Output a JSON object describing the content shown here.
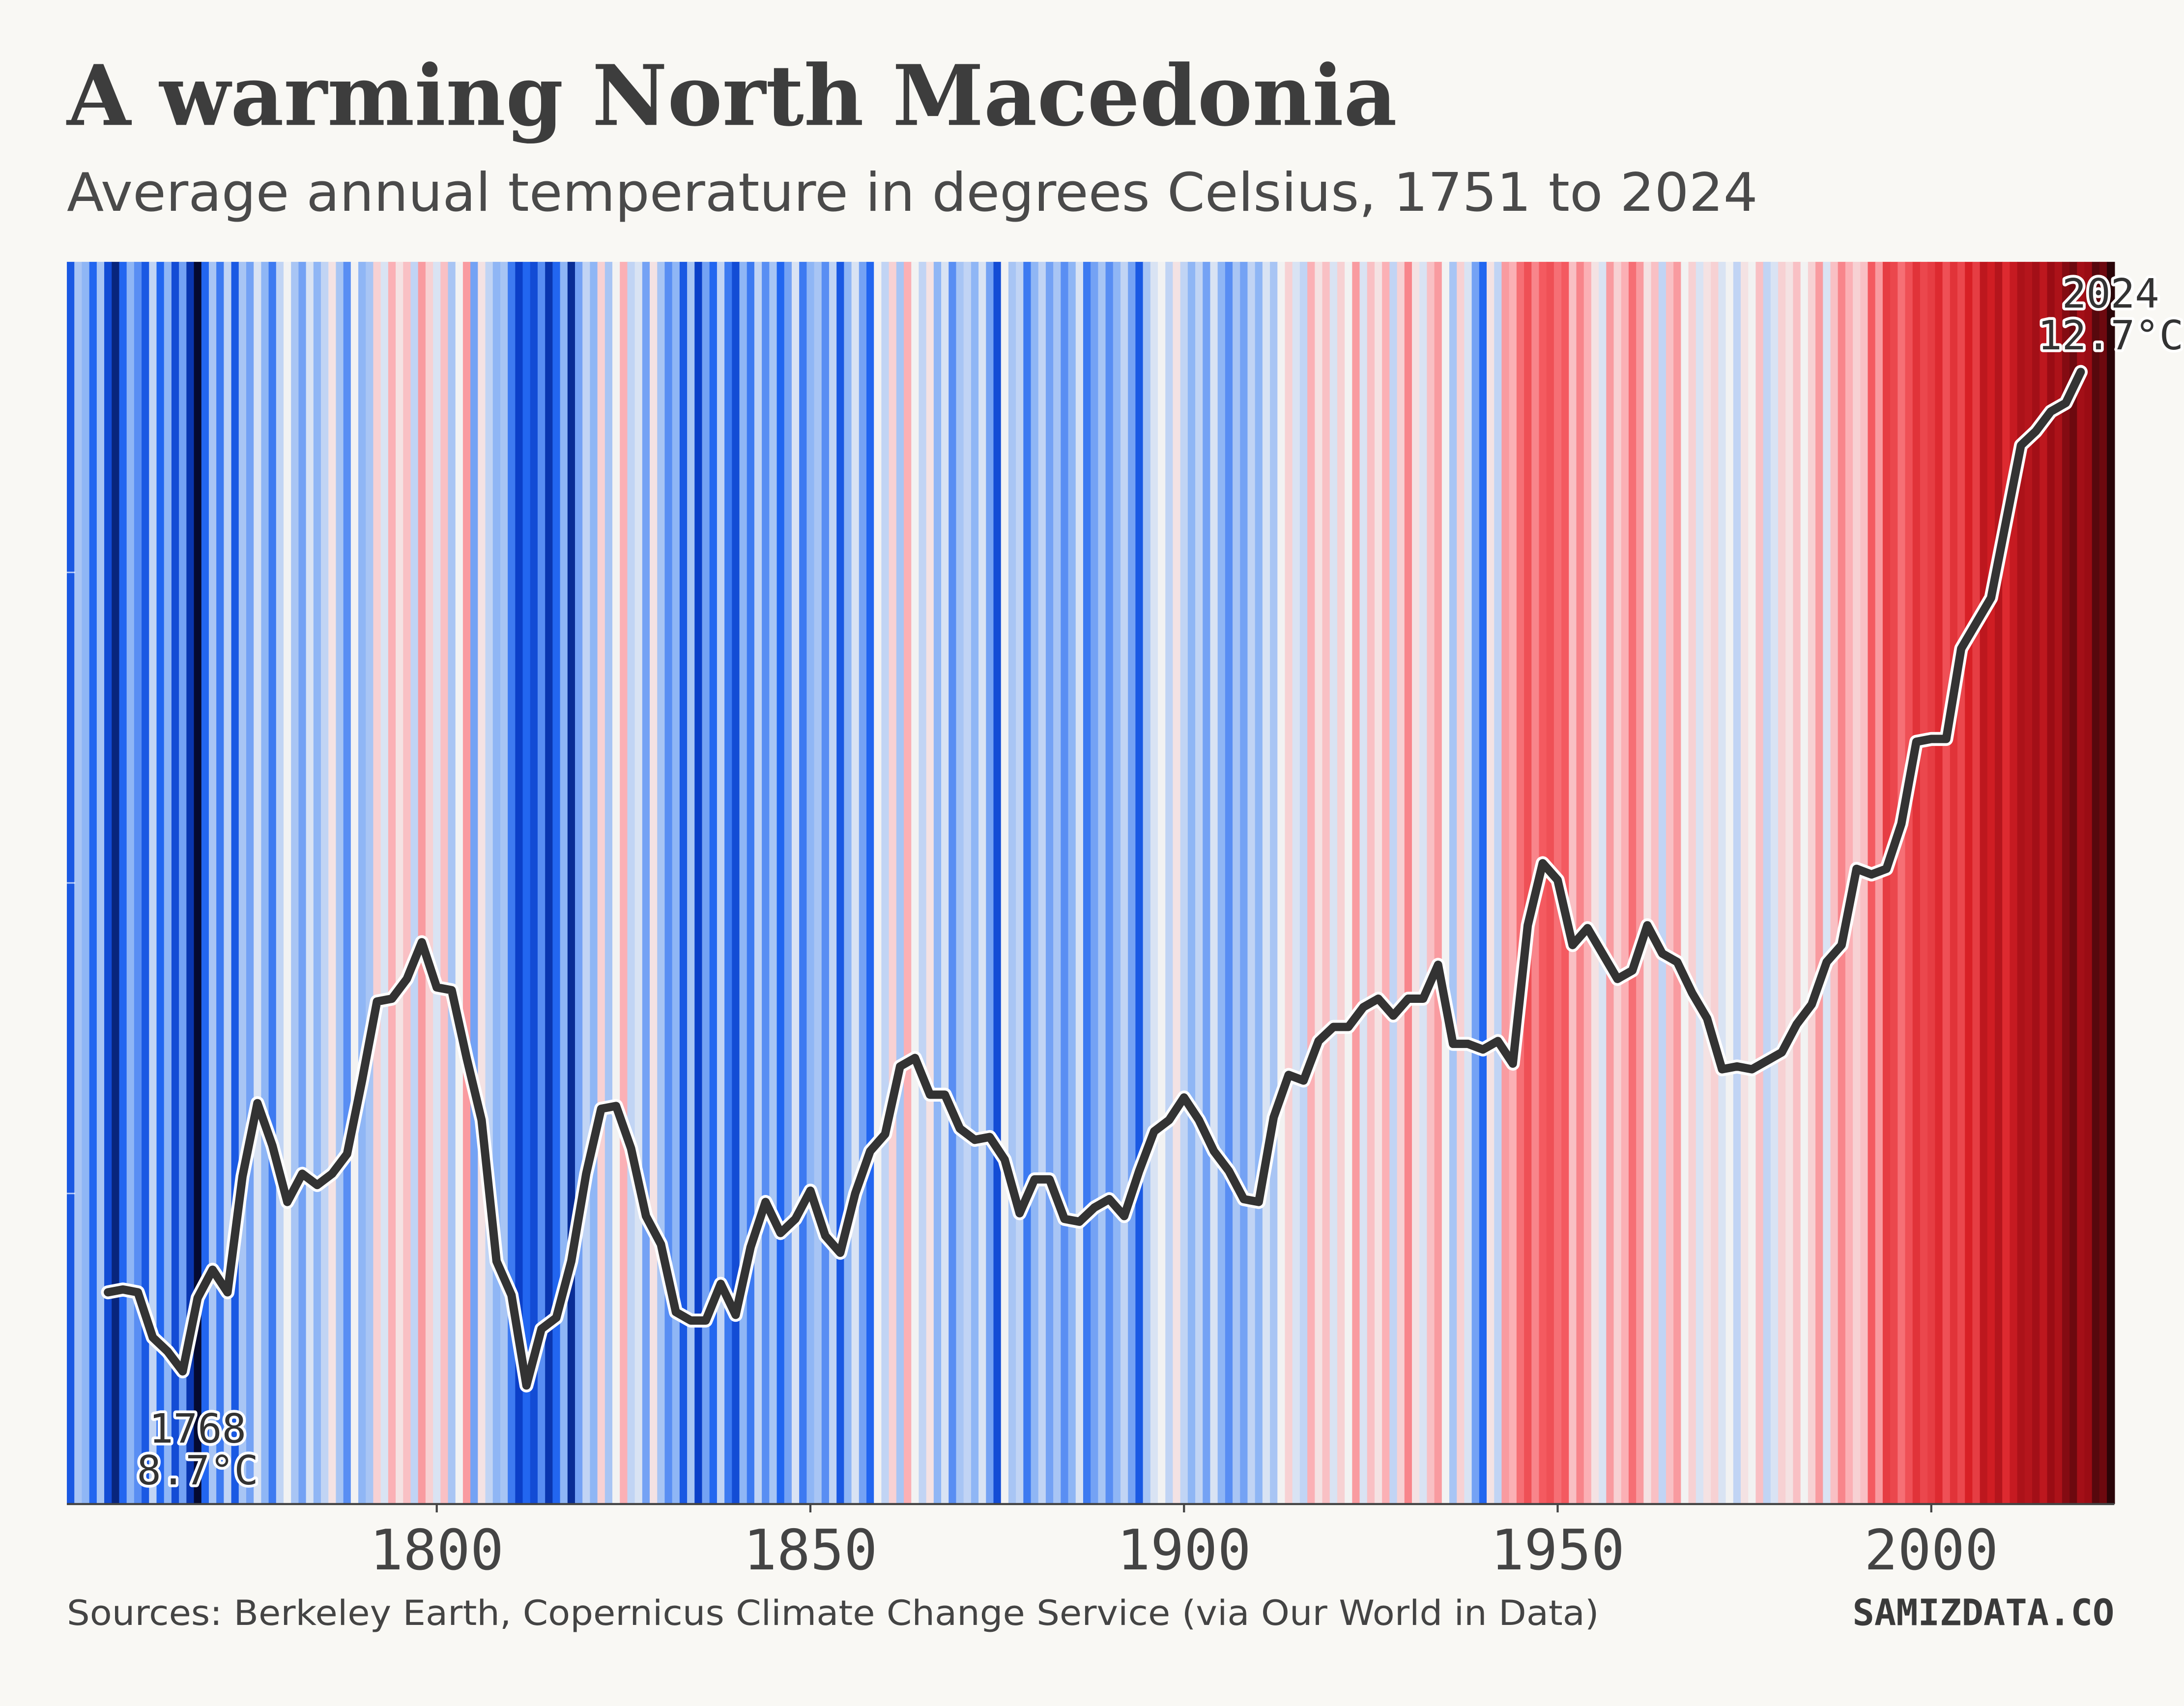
{
  "chart_data": {
    "type": "stripes",
    "title": "A warming North Macedonia",
    "subtitle": "Average annual temperature in degrees Celsius, 1751 to 2024",
    "source": "Sources: Berkeley Earth, Copernicus Climate Change Service (via Our World in Data)",
    "brand": "SAMIZDATA.CO",
    "x": [
      1751,
      1752,
      1753,
      1754,
      1755,
      1756,
      1757,
      1758,
      1759,
      1760,
      1761,
      1762,
      1763,
      1764,
      1765,
      1766,
      1767,
      1768,
      1769,
      1770,
      1771,
      1772,
      1773,
      1774,
      1775,
      1776,
      1777,
      1778,
      1779,
      1780,
      1781,
      1782,
      1783,
      1784,
      1785,
      1786,
      1787,
      1788,
      1789,
      1790,
      1791,
      1792,
      1793,
      1794,
      1795,
      1796,
      1797,
      1798,
      1799,
      1800,
      1801,
      1802,
      1803,
      1804,
      1805,
      1806,
      1807,
      1808,
      1809,
      1810,
      1811,
      1812,
      1813,
      1814,
      1815,
      1816,
      1817,
      1818,
      1819,
      1820,
      1821,
      1822,
      1823,
      1824,
      1825,
      1826,
      1827,
      1828,
      1829,
      1830,
      1831,
      1832,
      1833,
      1834,
      1835,
      1836,
      1837,
      1838,
      1839,
      1840,
      1841,
      1842,
      1843,
      1844,
      1845,
      1846,
      1847,
      1848,
      1849,
      1850,
      1851,
      1852,
      1853,
      1854,
      1855,
      1856,
      1857,
      1858,
      1859,
      1860,
      1861,
      1862,
      1863,
      1864,
      1865,
      1866,
      1867,
      1868,
      1869,
      1870,
      1871,
      1872,
      1873,
      1874,
      1875,
      1876,
      1877,
      1878,
      1879,
      1880,
      1881,
      1882,
      1883,
      1884,
      1885,
      1886,
      1887,
      1888,
      1889,
      1890,
      1891,
      1892,
      1893,
      1894,
      1895,
      1896,
      1897,
      1898,
      1899,
      1900,
      1901,
      1902,
      1903,
      1904,
      1905,
      1906,
      1907,
      1908,
      1909,
      1910,
      1911,
      1912,
      1913,
      1914,
      1915,
      1916,
      1917,
      1918,
      1919,
      1920,
      1921,
      1922,
      1923,
      1924,
      1925,
      1926,
      1927,
      1928,
      1929,
      1930,
      1931,
      1932,
      1933,
      1934,
      1935,
      1936,
      1937,
      1938,
      1939,
      1940,
      1941,
      1942,
      1943,
      1944,
      1945,
      1946,
      1947,
      1948,
      1949,
      1950,
      1951,
      1952,
      1953,
      1954,
      1955,
      1956,
      1957,
      1958,
      1959,
      1960,
      1961,
      1962,
      1963,
      1964,
      1965,
      1966,
      1967,
      1968,
      1969,
      1970,
      1971,
      1972,
      1973,
      1974,
      1975,
      1976,
      1977,
      1978,
      1979,
      1980,
      1981,
      1982,
      1983,
      1984,
      1985,
      1986,
      1987,
      1988,
      1989,
      1990,
      1991,
      1992,
      1993,
      1994,
      1995,
      1996,
      1997,
      1998,
      1999,
      2000,
      2001,
      2002,
      2003,
      2004,
      2005,
      2006,
      2007,
      2008,
      2009,
      2010,
      2011,
      2012,
      2013,
      2014,
      2015,
      2016,
      2017,
      2018,
      2019,
      2020,
      2021,
      2022,
      2023,
      2024
    ],
    "values": [
      9.2,
      9.8,
      9.7,
      9.3,
      9.8,
      9.1,
      8.85,
      9.3,
      9.7,
      9.5,
      9.2,
      9.9,
      9.3,
      9.7,
      9.1,
      9.6,
      8.95,
      8.7,
      9.3,
      9.8,
      9.4,
      9.9,
      9.2,
      9.8,
      9.6,
      10.0,
      9.7,
      9.4,
      9.9,
      10.1,
      9.8,
      9.6,
      10.0,
      9.7,
      9.9,
      10.2,
      9.8,
      9.5,
      10.1,
      9.7,
      9.8,
      10.3,
      10.0,
      10.5,
      10.2,
      10.4,
      9.9,
      10.6,
      10.3,
      10.0,
      10.4,
      9.8,
      10.1,
      10.6,
      9.6,
      10.2,
      9.9,
      9.7,
      9.8,
      9.4,
      9.0,
      9.3,
      9.1,
      9.5,
      8.95,
      9.3,
      9.7,
      8.9,
      9.6,
      9.9,
      9.7,
      10.3,
      9.8,
      10.1,
      10.5,
      9.9,
      10.0,
      9.6,
      10.2,
      9.8,
      9.5,
      9.7,
      9.2,
      9.8,
      9.0,
      9.6,
      9.3,
      9.9,
      9.4,
      9.1,
      9.7,
      9.4,
      9.9,
      9.5,
      9.8,
      9.3,
      9.6,
      10.0,
      9.4,
      9.7,
      9.8,
      9.5,
      9.9,
      9.2,
      9.7,
      10.0,
      9.6,
      9.3,
      10.1,
      9.9,
      10.3,
      9.8,
      10.5,
      10.1,
      9.9,
      10.2,
      9.7,
      10.0,
      9.5,
      9.8,
      9.9,
      9.7,
      10.0,
      9.6,
      9.1,
      10.1,
      9.8,
      9.9,
      9.4,
      9.7,
      9.9,
      9.6,
      9.8,
      9.5,
      9.7,
      10.0,
      9.4,
      9.6,
      9.8,
      9.5,
      9.7,
      9.9,
      9.6,
      9.2,
      9.8,
      10.0,
      10.1,
      9.9,
      10.2,
      9.9,
      9.7,
      9.9,
      9.6,
      10.0,
      9.7,
      9.5,
      9.8,
      9.6,
      9.9,
      9.7,
      10.0,
      9.8,
      10.1,
      10.3,
      10.0,
      9.9,
      10.5,
      10.2,
      10.4,
      10.0,
      10.3,
      10.1,
      10.6,
      10.0,
      10.4,
      10.2,
      10.5,
      9.9,
      10.3,
      10.7,
      10.2,
      10.0,
      10.4,
      10.6,
      10.1,
      9.8,
      10.3,
      10.0,
      9.6,
      9.3,
      10.2,
      9.9,
      10.6,
      10.5,
      10.8,
      11.0,
      10.7,
      10.9,
      11.0,
      10.8,
      10.9,
      10.4,
      10.7,
      10.5,
      10.2,
      10.0,
      10.6,
      10.3,
      10.5,
      10.8,
      10.6,
      10.2,
      10.4,
      9.9,
      10.4,
      10.6,
      10.1,
      10.3,
      10.0,
      10.2,
      10.3,
      10.0,
      10.1,
      9.9,
      10.2,
      10.1,
      10.4,
      9.9,
      10.0,
      10.3,
      10.2,
      10.4,
      10.1,
      10.3,
      10.6,
      10.0,
      10.4,
      10.7,
      10.5,
      10.3,
      10.4,
      10.9,
      10.6,
      11.2,
      11.1,
      10.8,
      11.0,
      11.3,
      11.1,
      11.2,
      11.4,
      11.0,
      11.3,
      11.1,
      11.5,
      11.2,
      11.8,
      11.6,
      11.9,
      11.4,
      11.7,
      12.0,
      11.9,
      12.1,
      11.8,
      12.2,
      12.0,
      12.3,
      12.4,
      12.1,
      12.2,
      12.5,
      12.4,
      12.7
    ],
    "colormap": [
      {
        "value": 8.7,
        "color": "#050a30"
      },
      {
        "value": 9.0,
        "color": "#0b3fc8"
      },
      {
        "value": 9.3,
        "color": "#2266f0"
      },
      {
        "value": 9.7,
        "color": "#8fb6f5"
      },
      {
        "value": 10.1,
        "color": "#f2f2f2"
      },
      {
        "value": 10.5,
        "color": "#fbb0b5"
      },
      {
        "value": 10.9,
        "color": "#f45a60"
      },
      {
        "value": 11.5,
        "color": "#d82026"
      },
      {
        "value": 12.2,
        "color": "#9a0c14"
      },
      {
        "value": 12.7,
        "color": "#2a0508"
      }
    ],
    "line": {
      "type": "line",
      "color": "#333333",
      "x": [
        1756,
        1758,
        1760,
        1762,
        1764,
        1766,
        1768,
        1770,
        1772,
        1774,
        1776,
        1778,
        1780,
        1782,
        1784,
        1786,
        1788,
        1790,
        1792,
        1794,
        1796,
        1798,
        1800,
        1802,
        1804,
        1806,
        1808,
        1810,
        1812,
        1814,
        1816,
        1818,
        1820,
        1822,
        1824,
        1826,
        1828,
        1830,
        1832,
        1834,
        1836,
        1838,
        1840,
        1842,
        1844,
        1846,
        1848,
        1850,
        1852,
        1854,
        1856,
        1858,
        1860,
        1862,
        1864,
        1866,
        1868,
        1870,
        1872,
        1874,
        1876,
        1878,
        1880,
        1882,
        1884,
        1886,
        1888,
        1890,
        1892,
        1894,
        1896,
        1898,
        1900,
        1902,
        1904,
        1906,
        1908,
        1910,
        1912,
        1914,
        1916,
        1918,
        1920,
        1922,
        1924,
        1926,
        1928,
        1930,
        1932,
        1934,
        1936,
        1938,
        1940,
        1942,
        1944,
        1946,
        1948,
        1950,
        1952,
        1954,
        1956,
        1958,
        1960,
        1962,
        1964,
        1966,
        1968,
        1970,
        1972,
        1974,
        1976,
        1978,
        1980,
        1982,
        1984,
        1986,
        1988,
        1990,
        1992,
        1994,
        1996,
        1998,
        2000,
        2002,
        2004,
        2006,
        2008,
        2010,
        2012,
        2014,
        2016,
        2018,
        2020
      ],
      "values": [
        9.25,
        9.26,
        9.25,
        9.09,
        9.04,
        8.97,
        9.23,
        9.33,
        9.25,
        9.66,
        9.92,
        9.77,
        9.57,
        9.67,
        9.63,
        9.67,
        9.74,
        10.0,
        10.28,
        10.29,
        10.36,
        10.49,
        10.33,
        10.32,
        10.08,
        9.86,
        9.36,
        9.24,
        8.92,
        9.12,
        9.16,
        9.36,
        9.67,
        9.9,
        9.91,
        9.76,
        9.52,
        9.42,
        9.18,
        9.15,
        9.15,
        9.28,
        9.17,
        9.41,
        9.57,
        9.46,
        9.51,
        9.61,
        9.45,
        9.39,
        9.6,
        9.75,
        9.81,
        10.05,
        10.08,
        9.95,
        9.95,
        9.83,
        9.79,
        9.8,
        9.72,
        9.53,
        9.65,
        9.65,
        9.51,
        9.5,
        9.55,
        9.58,
        9.52,
        9.68,
        9.82,
        9.86,
        9.94,
        9.86,
        9.75,
        9.68,
        9.58,
        9.57,
        9.87,
        10.02,
        10.0,
        10.14,
        10.19,
        10.19,
        10.26,
        10.29,
        10.23,
        10.29,
        10.29,
        10.41,
        10.13,
        10.13,
        10.11,
        10.14,
        10.06,
        10.55,
        10.77,
        10.71,
        10.48,
        10.54,
        10.45,
        10.36,
        10.39,
        10.55,
        10.45,
        10.42,
        10.31,
        10.22,
        10.04,
        10.05,
        10.04,
        10.07,
        10.1,
        10.2,
        10.27,
        10.42,
        10.48,
        10.75,
        10.73,
        10.75,
        10.91,
        11.2,
        11.21,
        11.21,
        11.53,
        11.62,
        11.71,
        11.98,
        12.25,
        12.3,
        12.37,
        12.4,
        12.51
      ]
    },
    "annotations": [
      {
        "year": 1768,
        "text": "8.7°C"
      },
      {
        "year": 2024,
        "text": "12.7°C"
      }
    ],
    "xlim": [
      1750.5,
      2024.5
    ],
    "xticks": [
      1800,
      1850,
      1900,
      1950,
      2000
    ],
    "ylim": [
      8.5,
      12.9
    ],
    "yticks": [
      9.6,
      10.7,
      11.8
    ]
  }
}
